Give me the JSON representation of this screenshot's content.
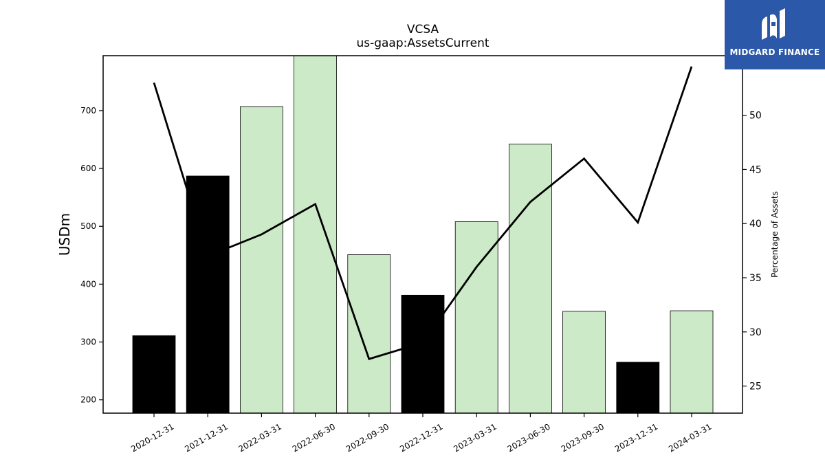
{
  "brand": {
    "name": "MIDGARD FINANCE",
    "logo_icon": "midgard-m-icon",
    "color": "#2b58a8"
  },
  "chart_data": {
    "type": "bar",
    "title": "VCSA",
    "subtitle": "us-gaap:AssetsCurrent",
    "ylabel": "USDm",
    "y2label": "Percentage of Assets",
    "ylim": [
      177,
      795
    ],
    "y2lim": [
      22.5,
      55.5
    ],
    "yticks": [
      200,
      300,
      400,
      500,
      600,
      700
    ],
    "y2ticks": [
      25,
      30,
      35,
      40,
      45,
      50
    ],
    "categories": [
      "2020-12-31",
      "2021-12-31",
      "2022-03-31",
      "2022-06-30",
      "2022-09-30",
      "2022-12-31",
      "2023-03-31",
      "2023-06-30",
      "2023-09-30",
      "2023-12-31",
      "2024-03-31"
    ],
    "series": [
      {
        "kind": "bar",
        "values": [
          311,
          587,
          707,
          795,
          451,
          381,
          508,
          642,
          353,
          265,
          354
        ],
        "colors": [
          "#000000",
          "#000000",
          "#cdeac8",
          "#cdeac8",
          "#cdeac8",
          "#000000",
          "#cdeac8",
          "#cdeac8",
          "#cdeac8",
          "#000000",
          "#cdeac8"
        ]
      },
      {
        "kind": "line",
        "axis": "right",
        "color": "#000000",
        "values": [
          53.0,
          37.0,
          39.0,
          41.8,
          27.5,
          29.0,
          36.0,
          42.0,
          46.0,
          40.1,
          54.5
        ]
      }
    ],
    "grid": false,
    "legend": "none"
  }
}
